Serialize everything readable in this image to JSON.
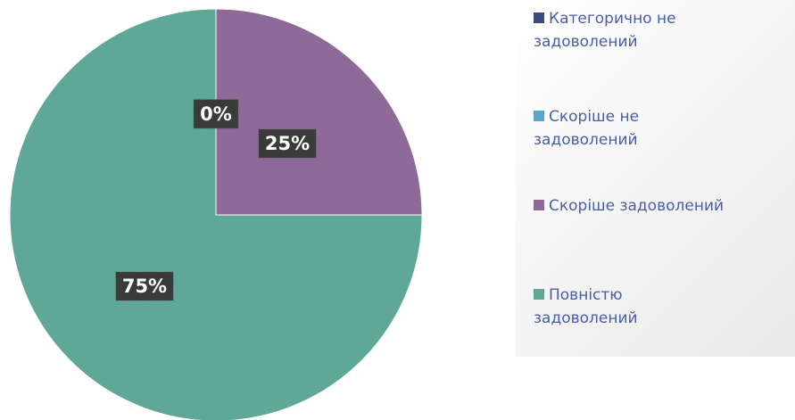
{
  "chart_data": {
    "type": "pie",
    "categories": [
      "Категорично не задоволений",
      "Скоріше не задоволений",
      "Скоріше задоволений",
      "Повністю задоволений"
    ],
    "values": [
      0,
      0,
      25,
      75
    ],
    "value_labels": [
      "0%",
      "0%",
      "25%",
      "75%"
    ],
    "colors": [
      "#3d4a7a",
      "#5ea5ca",
      "#8d6a97",
      "#5fa898"
    ],
    "legend": "right"
  }
}
